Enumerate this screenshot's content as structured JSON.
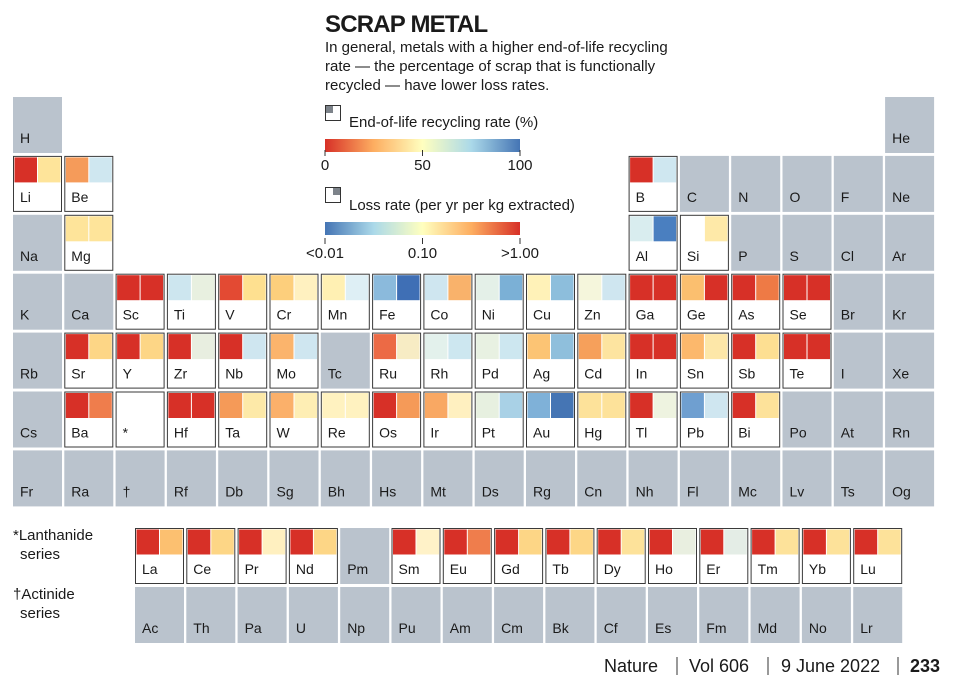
{
  "header": {
    "title": "SCRAP METAL",
    "subtitle": [
      "In general, metals with a higher end-of-life recycling",
      "rate — the percentage of scrap that is functionally",
      "recycled — have lower loss rates."
    ]
  },
  "legend": {
    "recycling": {
      "label": "End-of-life recycling rate (%)",
      "ticks": [
        "0",
        "50",
        "100"
      ]
    },
    "loss": {
      "label": "Loss rate (per yr per kg extracted)",
      "ticks": [
        "<0.01",
        "0.10",
        ">1.00"
      ]
    }
  },
  "table": {
    "rows": [
      [
        {
          "symbol": "H"
        },
        null,
        null,
        null,
        null,
        null,
        null,
        null,
        null,
        null,
        null,
        null,
        null,
        null,
        null,
        null,
        null,
        {
          "symbol": "He"
        }
      ],
      [
        {
          "symbol": "Li",
          "colors": [
            "#d73027",
            "#fee49a"
          ]
        },
        {
          "symbol": "Be",
          "colors": [
            "#f59b5a",
            "#cfe7f0"
          ]
        },
        null,
        null,
        null,
        null,
        null,
        null,
        null,
        null,
        null,
        null,
        {
          "symbol": "B",
          "colors": [
            "#d73027",
            "#cfe7f0"
          ]
        },
        {
          "symbol": "C"
        },
        {
          "symbol": "N"
        },
        {
          "symbol": "O"
        },
        {
          "symbol": "F"
        },
        {
          "symbol": "Ne"
        }
      ],
      [
        {
          "symbol": "Na"
        },
        {
          "symbol": "Mg",
          "colors": [
            "#fee49a",
            "#fee49a"
          ]
        },
        null,
        null,
        null,
        null,
        null,
        null,
        null,
        null,
        null,
        null,
        {
          "symbol": "Al",
          "colors": [
            "#d9edef",
            "#4a7fc0"
          ]
        },
        {
          "symbol": "Si",
          "colors": [
            "#ffffff",
            "#fee9a8"
          ]
        },
        {
          "symbol": "P"
        },
        {
          "symbol": "S"
        },
        {
          "symbol": "Cl"
        },
        {
          "symbol": "Ar"
        }
      ],
      [
        {
          "symbol": "K"
        },
        {
          "symbol": "Ca"
        },
        {
          "symbol": "Sc",
          "colors": [
            "#d73027",
            "#d73027"
          ]
        },
        {
          "symbol": "Ti",
          "colors": [
            "#cde6ef",
            "#e8f0e0"
          ]
        },
        {
          "symbol": "V",
          "colors": [
            "#e34a33",
            "#fee090"
          ]
        },
        {
          "symbol": "Cr",
          "colors": [
            "#fdcf7c",
            "#fff1c0"
          ]
        },
        {
          "symbol": "Mn",
          "colors": [
            "#fff0b3",
            "#deeff5"
          ]
        },
        {
          "symbol": "Fe",
          "colors": [
            "#8bbadc",
            "#3f6fb5"
          ]
        },
        {
          "symbol": "Co",
          "colors": [
            "#cfe6f0",
            "#f9b26b"
          ]
        },
        {
          "symbol": "Ni",
          "colors": [
            "#e4f0e8",
            "#7bb0d6"
          ]
        },
        {
          "symbol": "Cu",
          "colors": [
            "#fff2b8",
            "#8dbedc"
          ]
        },
        {
          "symbol": "Zn",
          "colors": [
            "#f5f6dc",
            "#cfe6f0"
          ]
        },
        {
          "symbol": "Ga",
          "colors": [
            "#d73027",
            "#d73027"
          ]
        },
        {
          "symbol": "Ge",
          "colors": [
            "#fbbf6f",
            "#d73027"
          ]
        },
        {
          "symbol": "As",
          "colors": [
            "#d73027",
            "#ee7a45"
          ]
        },
        {
          "symbol": "Se",
          "colors": [
            "#d73027",
            "#d73027"
          ]
        },
        {
          "symbol": "Br"
        },
        {
          "symbol": "Kr"
        }
      ],
      [
        {
          "symbol": "Rb"
        },
        {
          "symbol": "Sr",
          "colors": [
            "#d73027",
            "#fdd686"
          ]
        },
        {
          "symbol": "Y",
          "colors": [
            "#d73027",
            "#fdd686"
          ]
        },
        {
          "symbol": "Zr",
          "colors": [
            "#d73027",
            "#e8eee0"
          ]
        },
        {
          "symbol": "Nb",
          "colors": [
            "#d73027",
            "#cfe6f0"
          ]
        },
        {
          "symbol": "Mo",
          "colors": [
            "#fbb46c",
            "#cfe6f0"
          ]
        },
        {
          "symbol": "Tc"
        },
        {
          "symbol": "Ru",
          "colors": [
            "#ec6a45",
            "#f7ecc4"
          ]
        },
        {
          "symbol": "Rh",
          "colors": [
            "#e3f1ec",
            "#cde7f0"
          ]
        },
        {
          "symbol": "Pd",
          "colors": [
            "#e8f1e2",
            "#cde7f0"
          ]
        },
        {
          "symbol": "Ag",
          "colors": [
            "#fcc474",
            "#8fbfdc"
          ]
        },
        {
          "symbol": "Cd",
          "colors": [
            "#f6a05b",
            "#fde4a0"
          ]
        },
        {
          "symbol": "In",
          "colors": [
            "#d73027",
            "#d73027"
          ]
        },
        {
          "symbol": "Sn",
          "colors": [
            "#fcb86c",
            "#fde7a8"
          ]
        },
        {
          "symbol": "Sb",
          "colors": [
            "#d73027",
            "#fddf92"
          ]
        },
        {
          "symbol": "Te",
          "colors": [
            "#d73027",
            "#d73027"
          ]
        },
        {
          "symbol": "I"
        },
        {
          "symbol": "Xe"
        }
      ],
      [
        {
          "symbol": "Cs"
        },
        {
          "symbol": "Ba",
          "colors": [
            "#d73027",
            "#ef7d4c"
          ]
        },
        {
          "symbol": "*",
          "background": "#ffffff"
        },
        {
          "symbol": "Hf",
          "colors": [
            "#d73027",
            "#d73027"
          ]
        },
        {
          "symbol": "Ta",
          "colors": [
            "#f59a58",
            "#fde9a8"
          ]
        },
        {
          "symbol": "W",
          "colors": [
            "#fbb06a",
            "#feeeb4"
          ]
        },
        {
          "symbol": "Re",
          "colors": [
            "#fff2c0",
            "#fff2c0"
          ]
        },
        {
          "symbol": "Os",
          "colors": [
            "#d73027",
            "#f59a58"
          ]
        },
        {
          "symbol": "Ir",
          "colors": [
            "#f9a863",
            "#fff0c0"
          ]
        },
        {
          "symbol": "Pt",
          "colors": [
            "#e7f0e0",
            "#a9d1e6"
          ]
        },
        {
          "symbol": "Au",
          "colors": [
            "#7fb1d8",
            "#4575b4"
          ]
        },
        {
          "symbol": "Hg",
          "colors": [
            "#fde29a",
            "#fde29a"
          ]
        },
        {
          "symbol": "Tl",
          "colors": [
            "#d73027",
            "#eef3e0"
          ]
        },
        {
          "symbol": "Pb",
          "colors": [
            "#6f9fd0",
            "#cfe6f0"
          ]
        },
        {
          "symbol": "Bi",
          "colors": [
            "#d73027",
            "#fde29a"
          ]
        },
        {
          "symbol": "Po"
        },
        {
          "symbol": "At"
        },
        {
          "symbol": "Rn"
        }
      ],
      [
        {
          "symbol": "Fr"
        },
        {
          "symbol": "Ra"
        },
        {
          "symbol": "†"
        },
        {
          "symbol": "Rf"
        },
        {
          "symbol": "Db"
        },
        {
          "symbol": "Sg"
        },
        {
          "symbol": "Bh"
        },
        {
          "symbol": "Hs"
        },
        {
          "symbol": "Mt"
        },
        {
          "symbol": "Ds"
        },
        {
          "symbol": "Rg"
        },
        {
          "symbol": "Cn"
        },
        {
          "symbol": "Nh"
        },
        {
          "symbol": "Fl"
        },
        {
          "symbol": "Mc"
        },
        {
          "symbol": "Lv"
        },
        {
          "symbol": "Ts"
        },
        {
          "symbol": "Og"
        }
      ]
    ],
    "lanthanides": {
      "label": [
        "*Lanthanide",
        "series"
      ],
      "cells": [
        {
          "symbol": "La",
          "colors": [
            "#d73027",
            "#fcc070"
          ]
        },
        {
          "symbol": "Ce",
          "colors": [
            "#d73027",
            "#fdd686"
          ]
        },
        {
          "symbol": "Pr",
          "colors": [
            "#d73027",
            "#fff0c0"
          ]
        },
        {
          "symbol": "Nd",
          "colors": [
            "#d73027",
            "#fdd686"
          ]
        },
        {
          "symbol": "Pm"
        },
        {
          "symbol": "Sm",
          "colors": [
            "#d73027",
            "#fff2c8"
          ]
        },
        {
          "symbol": "Eu",
          "colors": [
            "#d73027",
            "#ef7d4c"
          ]
        },
        {
          "symbol": "Gd",
          "colors": [
            "#d73027",
            "#fdd686"
          ]
        },
        {
          "symbol": "Tb",
          "colors": [
            "#d73027",
            "#fdd686"
          ]
        },
        {
          "symbol": "Dy",
          "colors": [
            "#d73027",
            "#fde29a"
          ]
        },
        {
          "symbol": "Ho",
          "colors": [
            "#d73027",
            "#e9efe0"
          ]
        },
        {
          "symbol": "Er",
          "colors": [
            "#d73027",
            "#e4ede6"
          ]
        },
        {
          "symbol": "Tm",
          "colors": [
            "#d73027",
            "#fde29a"
          ]
        },
        {
          "symbol": "Yb",
          "colors": [
            "#d73027",
            "#fde29a"
          ]
        },
        {
          "symbol": "Lu",
          "colors": [
            "#d73027",
            "#fde29a"
          ]
        }
      ]
    },
    "actinides": {
      "label": [
        "†Actinide",
        "series"
      ],
      "cells": [
        {
          "symbol": "Ac"
        },
        {
          "symbol": "Th"
        },
        {
          "symbol": "Pa"
        },
        {
          "symbol": "U"
        },
        {
          "symbol": "Np"
        },
        {
          "symbol": "Pu"
        },
        {
          "symbol": "Am"
        },
        {
          "symbol": "Cm"
        },
        {
          "symbol": "Bk"
        },
        {
          "symbol": "Cf"
        },
        {
          "symbol": "Es"
        },
        {
          "symbol": "Fm"
        },
        {
          "symbol": "Md"
        },
        {
          "symbol": "No"
        },
        {
          "symbol": "Lr"
        }
      ]
    }
  },
  "footer": {
    "journal": "Nature",
    "volume": "Vol 606",
    "date": "9 June 2022",
    "page": "233"
  }
}
